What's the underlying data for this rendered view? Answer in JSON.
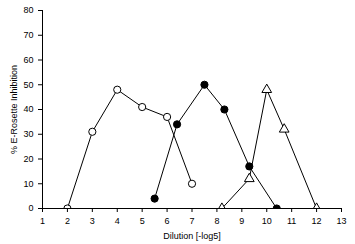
{
  "chart_data": {
    "type": "line",
    "x_label": "Dilution [-log5]",
    "y_label": "% E-Rosette Inhibition",
    "xlim": [
      1,
      13
    ],
    "xticks": [
      1,
      2,
      3,
      4,
      5,
      6,
      7,
      8,
      9,
      10,
      11,
      12,
      13
    ],
    "ylim": [
      0,
      80
    ],
    "yticks": [
      0,
      10,
      20,
      30,
      40,
      50,
      60,
      70,
      80
    ],
    "series": [
      {
        "color": "#000000",
        "marker": "open_circle",
        "x": [
          2,
          3,
          4,
          5,
          6,
          7
        ],
        "values": [
          0,
          31,
          48,
          41,
          37,
          10
        ]
      },
      {
        "color": "#000000",
        "marker": "filled_circle",
        "x": [
          5.5,
          6.4,
          7.5,
          8.3,
          9.3,
          10.4
        ],
        "values": [
          4,
          34,
          50,
          40,
          17,
          0
        ]
      },
      {
        "color": "#000000",
        "marker": "open_triangle",
        "x": [
          8.2,
          9.3,
          10,
          10.7,
          12
        ],
        "values": [
          0,
          12,
          48,
          32,
          0
        ]
      }
    ]
  }
}
